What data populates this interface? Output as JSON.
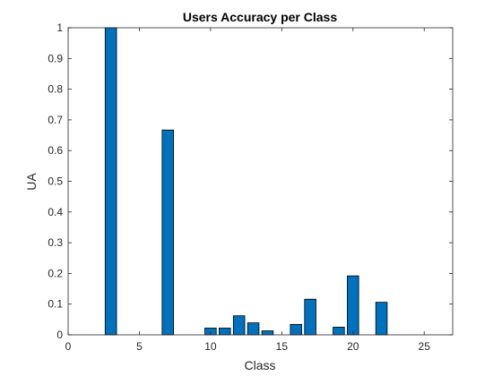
{
  "chart_data": {
    "type": "bar",
    "title": "Users Accuracy per Class",
    "xlabel": "Class",
    "ylabel": "UA",
    "xlim": [
      0,
      27
    ],
    "ylim": [
      0,
      1
    ],
    "xticks": [
      0,
      5,
      10,
      15,
      20,
      25
    ],
    "xtick_labels": [
      "0",
      "5",
      "10",
      "15",
      "20",
      "25"
    ],
    "yticks": [
      0,
      0.1,
      0.2,
      0.3,
      0.4,
      0.5,
      0.6,
      0.7,
      0.8,
      0.9,
      1
    ],
    "ytick_labels": [
      "0",
      "0.1",
      "0.2",
      "0.3",
      "0.4",
      "0.5",
      "0.6",
      "0.7",
      "0.8",
      "0.9",
      "1"
    ],
    "grid": false,
    "legend": "none",
    "bar_color": "#0072bd",
    "bar_edge_color": "#000000",
    "x": [
      3,
      7,
      10,
      11,
      12,
      13,
      14,
      16,
      17,
      19,
      20,
      22
    ],
    "values": [
      1.0,
      0.667,
      0.022,
      0.022,
      0.062,
      0.039,
      0.013,
      0.034,
      0.116,
      0.025,
      0.192,
      0.106
    ]
  }
}
